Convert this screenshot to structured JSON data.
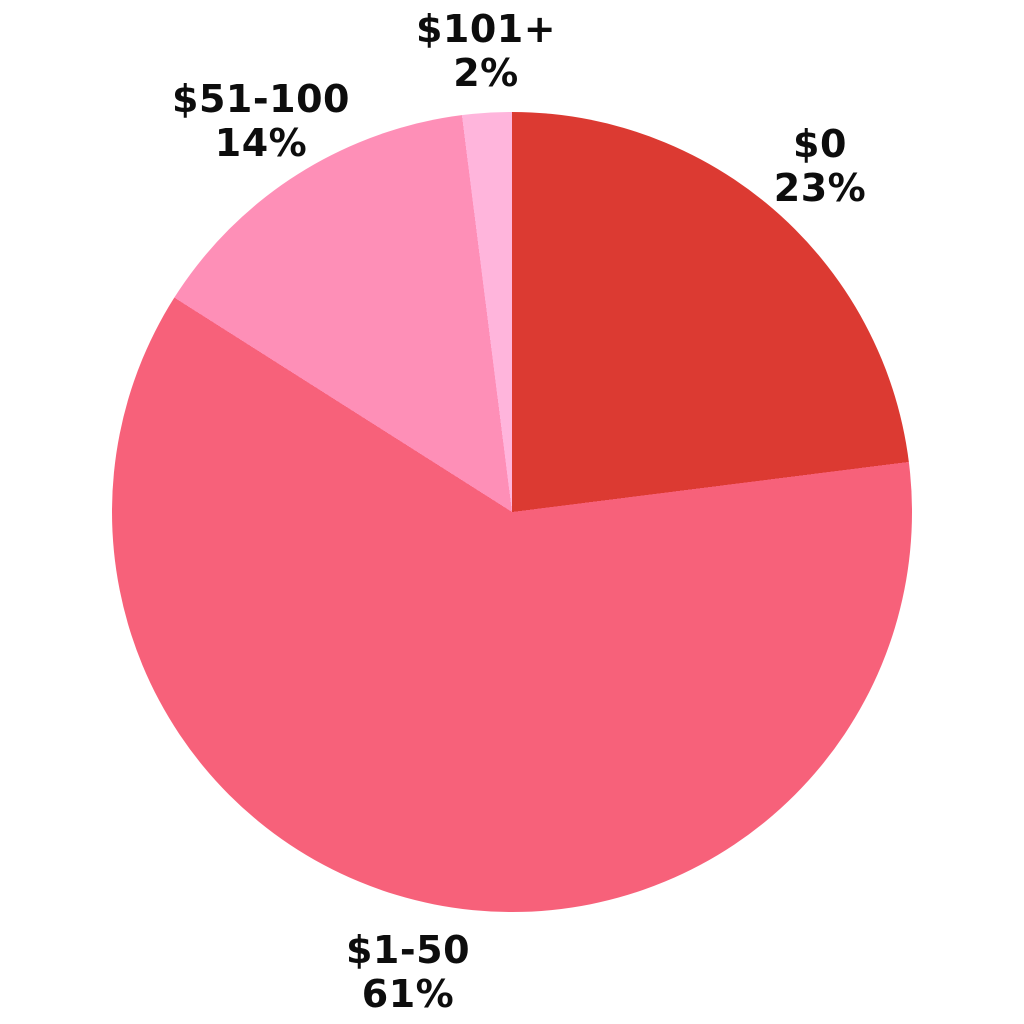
{
  "chart_data": {
    "type": "pie",
    "categories": [
      "$0",
      "$1-50",
      "$51-100",
      "$101+"
    ],
    "values": [
      23,
      61,
      14,
      2
    ],
    "unit": "percent",
    "colors": [
      "#DC3A32",
      "#F7617A",
      "#FE8FB7",
      "#FFB5DC"
    ],
    "start_angle_deg": 0,
    "direction": "clockwise",
    "legend_position": "none",
    "title": "",
    "background_color": "#FFFFFF",
    "labels": [
      {
        "line1": "$0",
        "line2": "23%"
      },
      {
        "line1": "$1-50",
        "line2": "61%"
      },
      {
        "line1": "$51-100",
        "line2": "14%"
      },
      {
        "line1": "$101+",
        "line2": "2%"
      }
    ]
  }
}
